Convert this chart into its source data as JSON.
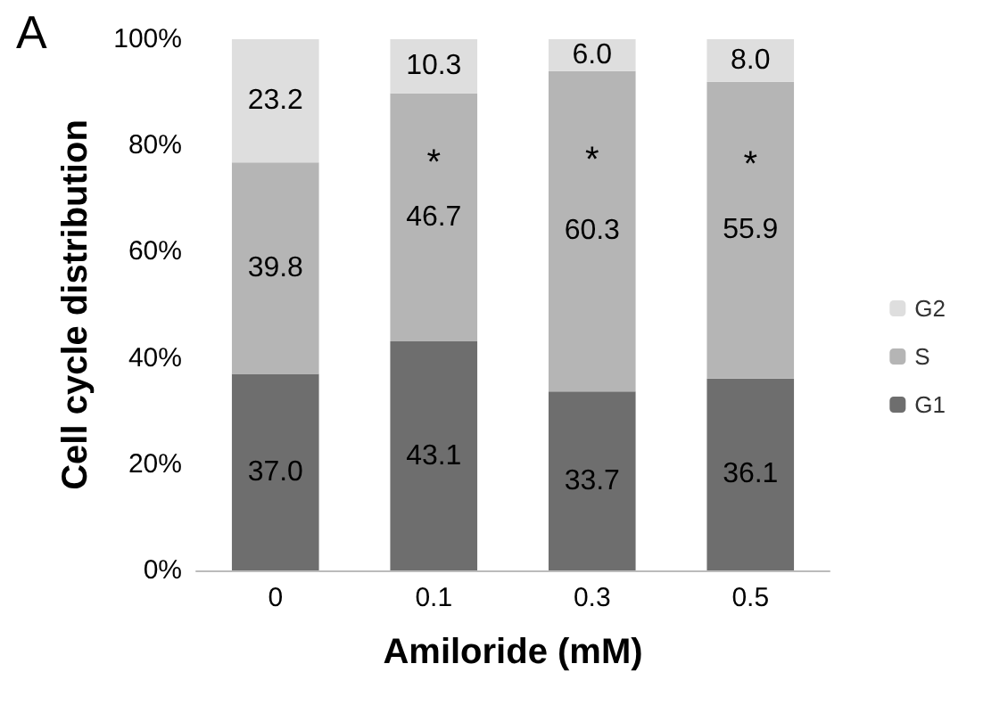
{
  "chart_data": {
    "type": "bar",
    "stacked": true,
    "xlabel": "Amiloride (mM)",
    "ylabel": "Cell cycle distribution",
    "categories": [
      "0",
      "0.1",
      "0.3",
      "0.5"
    ],
    "series": [
      {
        "name": "G1",
        "color": "#6e6e6e",
        "values": [
          37.0,
          43.1,
          33.7,
          36.1
        ],
        "value_labels": [
          "37.0",
          "43.1",
          "33.7",
          "36.1"
        ]
      },
      {
        "name": "S",
        "color": "#b5b5b5",
        "values": [
          39.8,
          46.7,
          60.3,
          55.9
        ],
        "value_labels": [
          "39.8",
          "46.7",
          "60.3",
          "55.9"
        ]
      },
      {
        "name": "G2",
        "color": "#dedede",
        "values": [
          23.2,
          10.3,
          6.0,
          8.0
        ],
        "value_labels": [
          "23.2",
          "10.3",
          "6.0",
          "8.0"
        ]
      }
    ],
    "ylim": [
      0,
      100
    ],
    "yticks": [
      {
        "value": 0,
        "label": "0%"
      },
      {
        "value": 20,
        "label": "20%"
      },
      {
        "value": 40,
        "label": "40%"
      },
      {
        "value": 60,
        "label": "60%"
      },
      {
        "value": 80,
        "label": "80%"
      },
      {
        "value": 100,
        "label": "100%"
      }
    ],
    "grid": false,
    "legend": "right",
    "annotations": [
      "A",
      "*",
      "*",
      "*"
    ]
  }
}
